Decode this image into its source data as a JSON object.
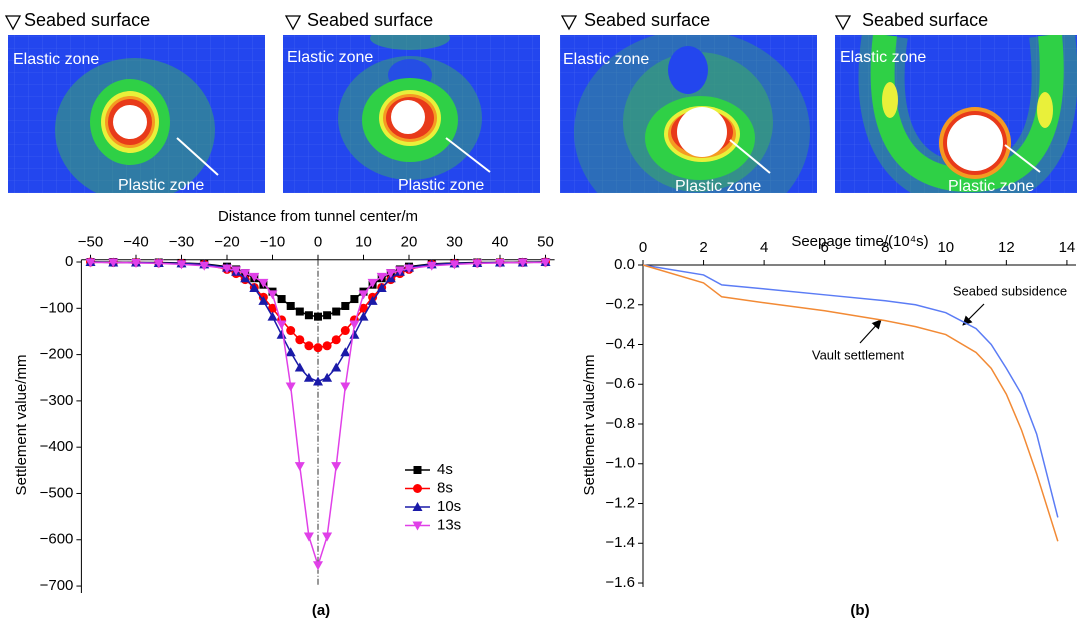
{
  "contours": [
    {
      "surface": "Seabed surface",
      "elastic": "Elastic zone",
      "plastic": "Plastic zone"
    },
    {
      "surface": "Seabed surface",
      "elastic": "Elastic zone",
      "plastic": "Plastic zone"
    },
    {
      "surface": "Seabed surface",
      "elastic": "Elastic zone",
      "plastic": "Plastic zone"
    },
    {
      "surface": "Seabed surface",
      "elastic": "Elastic zone",
      "plastic": "Plastic zone"
    }
  ],
  "chart_data": [
    {
      "type": "line",
      "caption": "(a)",
      "x_label": "Distance from tunnel center/m",
      "y_label": "Settlement value/mm",
      "xlim": [
        -52,
        52
      ],
      "ylim": [
        -715,
        5
      ],
      "xticks": [
        {
          "value": -50,
          "label": "−50"
        },
        {
          "value": -40,
          "label": "−40"
        },
        {
          "value": -30,
          "label": "−30"
        },
        {
          "value": -20,
          "label": "−20"
        },
        {
          "value": -10,
          "label": "−10"
        },
        0,
        10,
        20,
        30,
        40,
        50
      ],
      "yticks": [
        0,
        {
          "value": -100,
          "label": "−100"
        },
        {
          "value": -200,
          "label": "−200"
        },
        {
          "value": -300,
          "label": "−300"
        },
        {
          "value": -400,
          "label": "−400"
        },
        {
          "value": -500,
          "label": "−500"
        },
        {
          "value": -600,
          "label": "−600"
        },
        {
          "value": -700,
          "label": "−700"
        }
      ],
      "vline": 0,
      "legend": "lower-center",
      "x": [
        -50,
        -45,
        -40,
        -35,
        -30,
        -25,
        -20,
        -18,
        -16,
        -14,
        -12,
        -10,
        -8,
        -6,
        -4,
        -2,
        0,
        2,
        4,
        6,
        8,
        10,
        12,
        14,
        16,
        18,
        20,
        25,
        30,
        35,
        40,
        45,
        50
      ],
      "series": [
        {
          "name": "4s",
          "color": "#000000",
          "marker": "square",
          "values": [
            0,
            0,
            -1,
            -1,
            -2,
            -4,
            -10,
            -16,
            -24,
            -35,
            -49,
            -64,
            -80,
            -95,
            -107,
            -115,
            -118,
            -115,
            -107,
            -95,
            -80,
            -64,
            -49,
            -35,
            -24,
            -16,
            -10,
            -4,
            -2,
            -1,
            -1,
            0,
            0
          ]
        },
        {
          "name": "8s",
          "color": "#ff0000",
          "marker": "circle",
          "values": [
            0,
            -1,
            -1,
            -2,
            -3,
            -5,
            -16,
            -25,
            -38,
            -55,
            -76,
            -100,
            -125,
            -148,
            -168,
            -181,
            -185,
            -181,
            -168,
            -148,
            -125,
            -100,
            -76,
            -55,
            -38,
            -25,
            -16,
            -5,
            -3,
            -2,
            -1,
            -1,
            0
          ]
        },
        {
          "name": "10s",
          "color": "#1a1aa8",
          "marker": "triangle-up",
          "values": [
            0,
            -1,
            -1,
            -2,
            -3,
            -5,
            -12,
            -21,
            -35,
            -56,
            -84,
            -118,
            -157,
            -195,
            -228,
            -250,
            -258,
            -250,
            -228,
            -195,
            -157,
            -118,
            -84,
            -56,
            -35,
            -21,
            -12,
            -5,
            -3,
            -2,
            -1,
            -1,
            0
          ]
        },
        {
          "name": "13s",
          "color": "#e040e8",
          "marker": "triangle-down",
          "values": [
            -1,
            -1,
            -2,
            -3,
            -5,
            -8,
            -14,
            -18,
            -24,
            -32,
            -45,
            -70,
            -135,
            -269,
            -441,
            -593,
            -655,
            -593,
            -441,
            -269,
            -135,
            -70,
            -45,
            -32,
            -24,
            -18,
            -14,
            -8,
            -5,
            -3,
            -2,
            -1,
            -1
          ]
        }
      ]
    },
    {
      "type": "line",
      "caption": "(b)",
      "x_label": "Seepage time/(10⁴s)",
      "y_label": "Settlement value/mm",
      "xlim": [
        0,
        14.3
      ],
      "ylim": [
        -1.62,
        0
      ],
      "xticks": [
        0,
        2,
        4,
        6,
        8,
        10,
        12,
        14
      ],
      "yticks": [
        {
          "value": 0,
          "label": "0.0"
        },
        {
          "value": -0.2,
          "label": "−0.2"
        },
        {
          "value": -0.4,
          "label": "−0.4"
        },
        {
          "value": -0.6,
          "label": "−0.6"
        },
        {
          "value": -0.8,
          "label": "−0.8"
        },
        {
          "value": -1.0,
          "label": "−1.0"
        },
        {
          "value": -1.2,
          "label": "−1.2"
        },
        {
          "value": -1.4,
          "label": "−1.4"
        },
        {
          "value": -1.6,
          "label": "−1.6"
        }
      ],
      "x": [
        0,
        2,
        2.6,
        4,
        6,
        8,
        9,
        10,
        11,
        11.5,
        12,
        12.5,
        13,
        13.7
      ],
      "series": [
        {
          "name": "Seabed subsidence",
          "color": "#5b7cf5",
          "values": [
            0,
            -0.05,
            -0.1,
            -0.12,
            -0.15,
            -0.18,
            -0.2,
            -0.24,
            -0.32,
            -0.4,
            -0.52,
            -0.65,
            -0.85,
            -1.27
          ]
        },
        {
          "name": "Vault settlement",
          "color": "#f28a35",
          "values": [
            0,
            -0.09,
            -0.16,
            -0.19,
            -0.23,
            -0.28,
            -0.31,
            -0.35,
            -0.44,
            -0.52,
            -0.65,
            -0.83,
            -1.05,
            -1.39
          ]
        }
      ]
    }
  ]
}
